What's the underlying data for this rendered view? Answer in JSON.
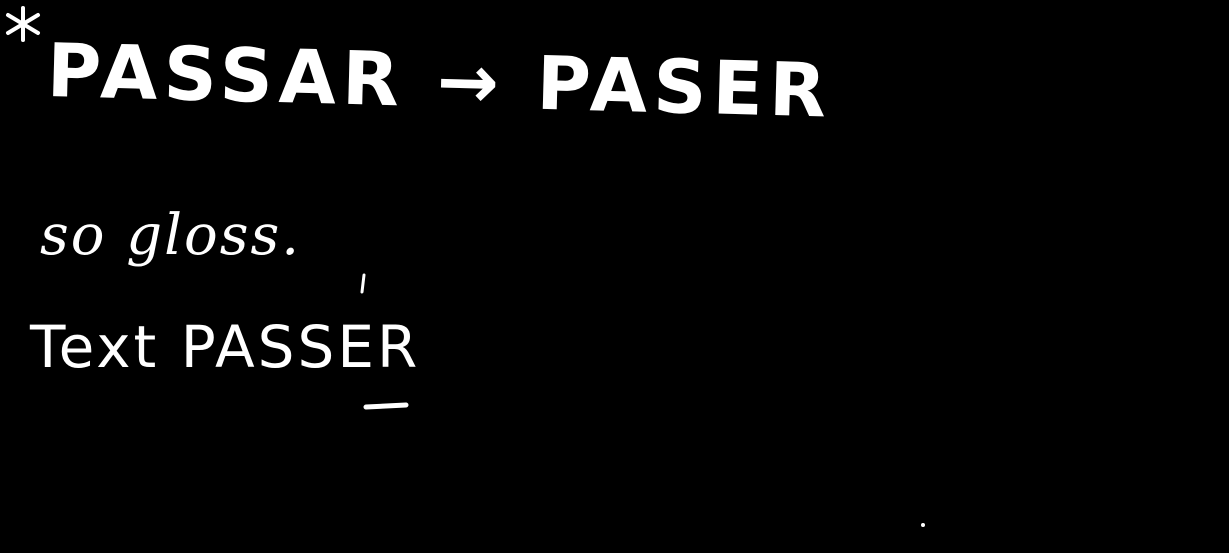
{
  "note": {
    "heading": "PASSAR → PASER",
    "gloss": "so gloss.",
    "example": "Text PASSER"
  },
  "colors": {
    "background": "#000000",
    "ink": "#ffffff"
  },
  "icons": {
    "star": "asterisk-star-icon"
  }
}
